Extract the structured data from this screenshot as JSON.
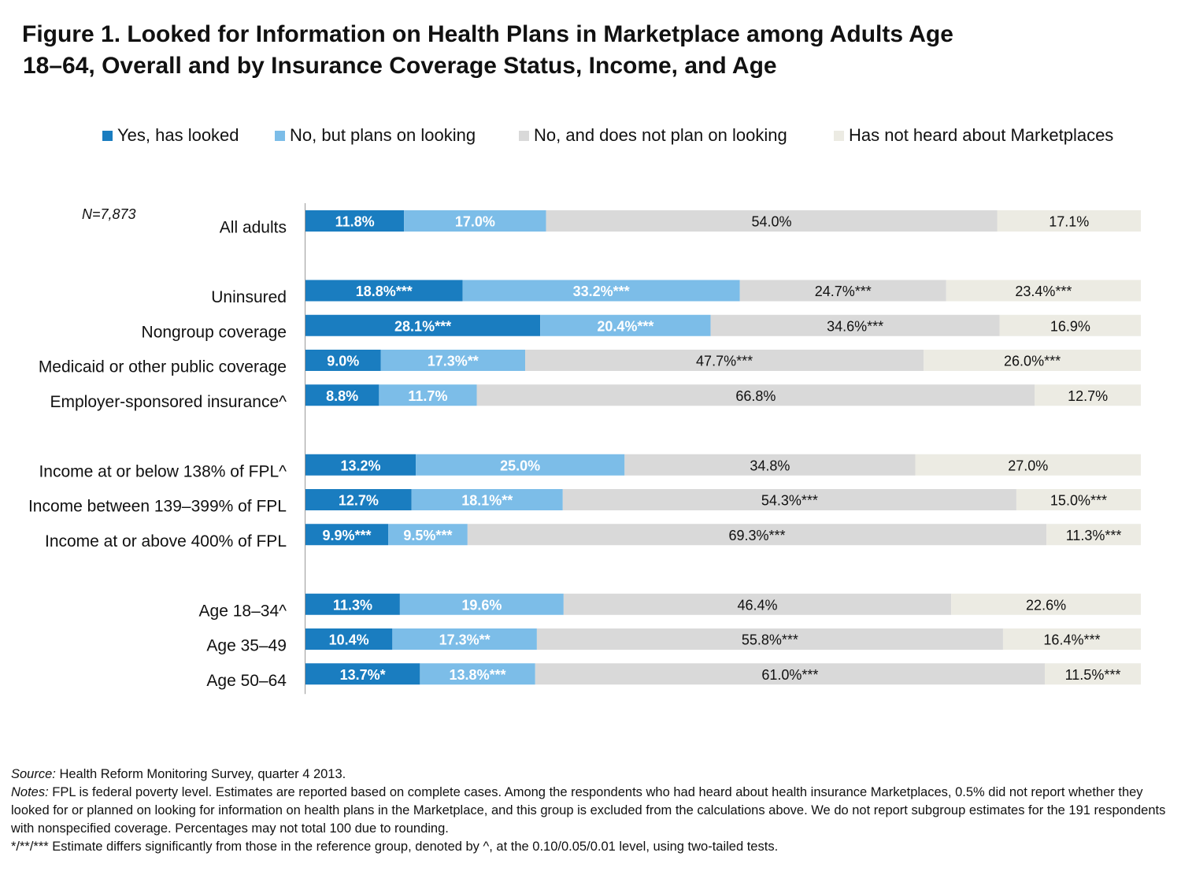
{
  "title_line1": "Figure 1. Looked for Information on Health Plans in Marketplace among Adults Age",
  "title_line2": "18–64, Overall and by Insurance Coverage Status, Income, and Age",
  "sample_note": "N=7,873",
  "colors": {
    "yes": "#1a7dc0",
    "plans": "#7cbde8",
    "not": "#d9d9d9",
    "unheard": "#ecebe3",
    "axis": "#9a9a9a"
  },
  "chart_data": {
    "type": "bar",
    "orientation": "horizontal",
    "stacked": true,
    "xlim": [
      0,
      100
    ],
    "legend_position": "top",
    "series": [
      {
        "name": "Yes, has looked",
        "color_key": "yes",
        "values": [
          11.8,
          18.8,
          28.1,
          9.0,
          8.8,
          13.2,
          12.7,
          9.9,
          11.3,
          10.4,
          13.7
        ],
        "labels": [
          "11.8%",
          "18.8%***",
          "28.1%***",
          "9.0%",
          "8.8%",
          "13.2%",
          "12.7%",
          "9.9%***",
          "11.3%",
          "10.4%",
          "13.7%*"
        ]
      },
      {
        "name": "No, but plans on looking",
        "color_key": "plans",
        "values": [
          17.0,
          33.2,
          20.4,
          17.3,
          11.7,
          25.0,
          18.1,
          9.5,
          19.6,
          17.3,
          13.8
        ],
        "labels": [
          "17.0%",
          "33.2%***",
          "20.4%***",
          "17.3%**",
          "11.7%",
          "25.0%",
          "18.1%**",
          "9.5%***",
          "19.6%",
          "17.3%**",
          "13.8%***"
        ]
      },
      {
        "name": "No, and does not plan on looking",
        "color_key": "not",
        "values": [
          54.0,
          24.7,
          34.6,
          47.7,
          66.8,
          34.8,
          54.3,
          69.3,
          46.4,
          55.8,
          61.0
        ],
        "labels": [
          "54.0%",
          "24.7%***",
          "34.6%***",
          "47.7%***",
          "66.8%",
          "34.8%",
          "54.3%***",
          "69.3%***",
          "46.4%",
          "55.8%***",
          "61.0%***"
        ]
      },
      {
        "name": "Has not heard about Marketplaces",
        "color_key": "unheard",
        "values": [
          17.1,
          23.4,
          16.9,
          26.0,
          12.7,
          27.0,
          15.0,
          11.3,
          22.6,
          16.4,
          11.5
        ],
        "labels": [
          "17.1%",
          "23.4%***",
          "16.9%",
          "26.0%***",
          "12.7%",
          "27.0%",
          "15.0%***",
          "11.3%***",
          "22.6%",
          "16.4%***",
          "11.5%***"
        ]
      }
    ],
    "categories": [
      "All adults",
      "Uninsured",
      "Nongroup coverage",
      "Medicaid or other public coverage",
      "Employer-sponsored insurance^",
      "Income at or below 138% of FPL^",
      "Income between 139–399% of FPL",
      "Income at or above 400% of FPL",
      "Age 18–34^",
      "Age 35–49",
      "Age 50–64"
    ],
    "groups": [
      1,
      2,
      2,
      2,
      2,
      3,
      3,
      3,
      4,
      4,
      4
    ]
  },
  "footnotes": {
    "source_label": "Source:",
    "source_text": " Health Reform Monitoring Survey, quarter 4 2013.",
    "notes_label": "Notes:",
    "notes_text": " FPL is federal poverty level.  Estimates are reported based on complete cases. Among the respondents who had heard about health insurance Marketplaces, 0.5% did not report whether they looked for or planned on looking for information on health plans in the Marketplace, and this group is excluded from the calculations above. We do not report subgroup estimates for the 191 respondents with nonspecified coverage.  Percentages may not total 100 due to rounding.",
    "significance_text": "*/**/*** Estimate differs significantly from those in the reference group, denoted by ^, at the 0.10/0.05/0.01 level, using two-tailed tests."
  }
}
